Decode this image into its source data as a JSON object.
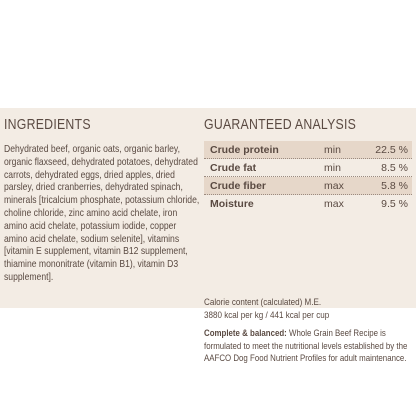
{
  "ingredients": {
    "title": "INGREDIENTS",
    "text": "Dehydrated beef, organic oats, organic barley, organic flaxseed, dehydrated potatoes, dehydrated carrots, dehydrated eggs, dried apples, dried parsley, dried cranberries, dehydrated spinach, minerals [tricalcium phosphate, potassium chloride, choline chloride, zinc amino acid chelate, iron amino acid chelate, potassium iodide, copper amino acid chelate, sodium selenite], vitamins [vitamin E supplement, vitamin B12 supplement, thiamine mononitrate (vitamin B1), vitamin D3 supplement]."
  },
  "analysis": {
    "title": "GUARANTEED ANALYSIS",
    "rows": [
      {
        "name": "Crude protein",
        "qualifier": "min",
        "value": "22.5 %"
      },
      {
        "name": "Crude fat",
        "qualifier": "min",
        "value": "8.5 %"
      },
      {
        "name": "Crude fiber",
        "qualifier": "max",
        "value": "5.8 %"
      },
      {
        "name": "Moisture",
        "qualifier": "max",
        "value": "9.5 %"
      }
    ],
    "calorie_label": "Calorie content (calculated) M.E.",
    "calorie_value": "3880 kcal per kg / 441 kcal per cup",
    "complete_label": "Complete & balanced:",
    "complete_text": " Whole Grain Beef Recipe is formulated to meet the nutritional levels established by the AAFCO Dog Food Nutrient Profiles for adult maintenance."
  },
  "colors": {
    "panel_bg": "#f3ece4",
    "row_alt_bg": "#e6d7c9",
    "text": "#5a4a42"
  }
}
